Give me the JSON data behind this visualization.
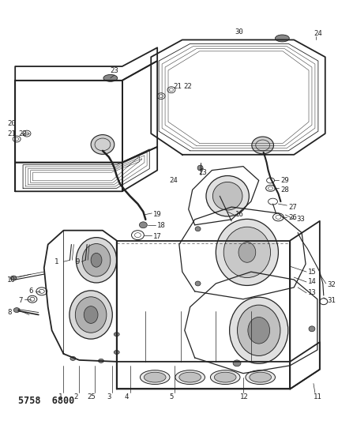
{
  "header": "5758  6800",
  "bg_color": "#ffffff",
  "line_color": "#222222",
  "lw_main": 0.9,
  "lw_thick": 1.3,
  "lw_thin": 0.5,
  "font_size": 6.5,
  "font_size_header": 8.5
}
